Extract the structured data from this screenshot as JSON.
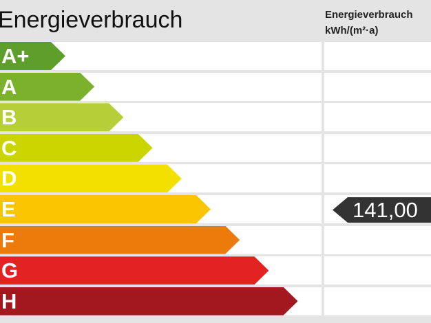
{
  "header": {
    "title": "Energieverbrauch",
    "column_title": "Energieverbrauch",
    "column_unit": "kWh/(m²·a)"
  },
  "chart_data": {
    "type": "bar",
    "title": "Energieverbrauch",
    "categories": [
      "A+",
      "A",
      "B",
      "C",
      "D",
      "E",
      "F",
      "G",
      "H"
    ],
    "colors": [
      "#5d9f2a",
      "#7cb22b",
      "#b6cf39",
      "#cad500",
      "#f2e100",
      "#f8c500",
      "#ec7b0b",
      "#e32322",
      "#a3181f"
    ],
    "value": {
      "label": "141,00",
      "class": "E"
    }
  }
}
